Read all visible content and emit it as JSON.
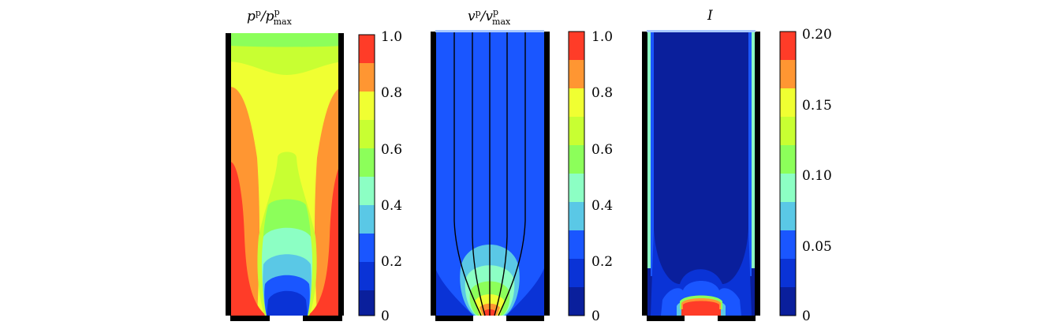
{
  "panels": [
    {
      "id": "pressure",
      "title": {
        "base": "p",
        "sup": "p",
        "slash": "/",
        "base2": "p",
        "sup2": "p",
        "sub2": "max"
      },
      "colorbar_ticks": [
        "1.0",
        "0.8",
        "0.6",
        "0.4",
        "0.2",
        "0"
      ]
    },
    {
      "id": "velocity",
      "title": {
        "base": "v",
        "sup": "p",
        "slash": "/",
        "base2": "v",
        "sup2": "p",
        "sub2": "max"
      },
      "colorbar_ticks": [
        "1.0",
        "0.8",
        "0.6",
        "0.4",
        "0.2",
        "0"
      ]
    },
    {
      "id": "intensity",
      "title": {
        "base": "I"
      },
      "colorbar_ticks": [
        "0.20",
        "0.15",
        "0.10",
        "0.05",
        "0"
      ]
    }
  ],
  "colormap": [
    "#0a1f9c",
    "#0a33d6",
    "#1a56ff",
    "#5ac8e6",
    "#8cffc4",
    "#8cff5a",
    "#c8ff32",
    "#f0ff32",
    "#ff9632",
    "#ff3c28"
  ]
}
